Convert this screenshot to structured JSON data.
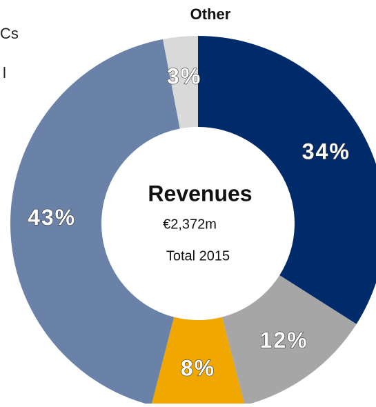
{
  "chart_data": {
    "type": "donut",
    "annotations": [
      "Cs",
      "l",
      "Other"
    ],
    "center_title": "Revenues",
    "center_value": "€2,372m",
    "center_subtitle": "Total 2015",
    "categories": [
      null,
      null,
      null,
      null,
      "Other"
    ],
    "values": [
      34,
      12,
      8,
      43,
      3
    ],
    "value_labels": [
      "34%",
      "12%",
      "8%",
      "43%",
      "3%"
    ],
    "colors": [
      "#002b6a",
      "#a6a6a6",
      "#f0a800",
      "#6b82a8",
      "#d9d9d9"
    ]
  }
}
